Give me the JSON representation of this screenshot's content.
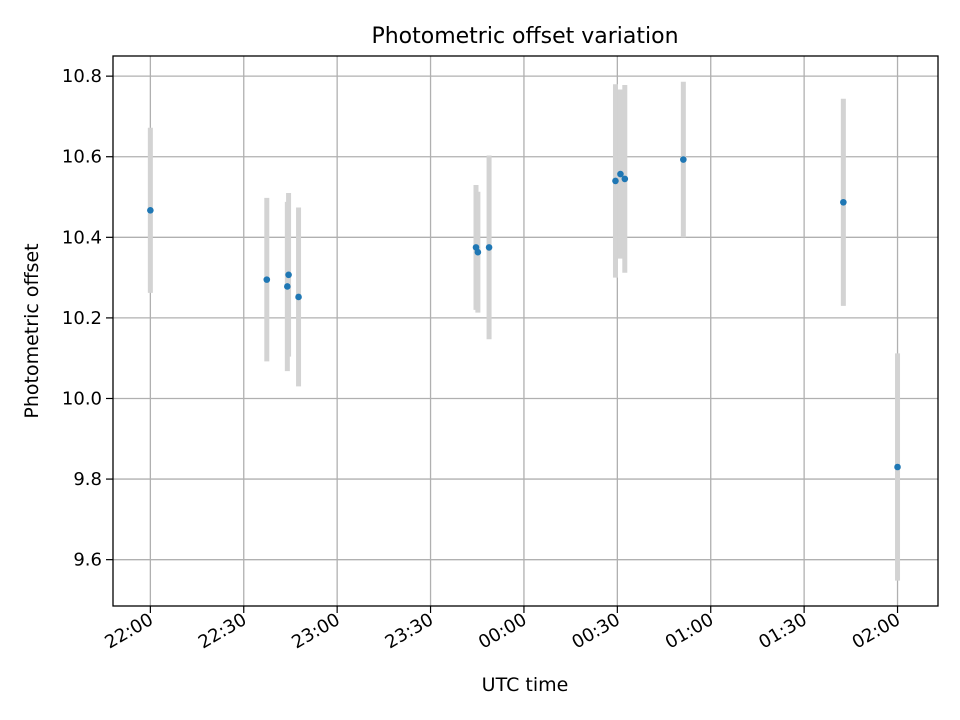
{
  "chart_data": {
    "type": "scatter",
    "title": "Photometric offset variation",
    "xlabel": "UTC time",
    "ylabel": "Photometric offset",
    "xlim_minutes": [
      -6,
      126.5
    ],
    "ylim": [
      9.485,
      10.85
    ],
    "x_ticks": [
      {
        "minutes": 0,
        "label": "22:00"
      },
      {
        "minutes": 15,
        "label": "22:30"
      },
      {
        "minutes": 30,
        "label": "23:00"
      },
      {
        "minutes": 45,
        "label": "23:30"
      },
      {
        "minutes": 60,
        "label": "00:00"
      },
      {
        "minutes": 75,
        "label": "00:30"
      },
      {
        "minutes": 90,
        "label": "01:00"
      },
      {
        "minutes": 105,
        "label": "01:30"
      },
      {
        "minutes": 120,
        "label": "02:00"
      }
    ],
    "y_ticks": [
      {
        "value": 9.6,
        "label": "9.6"
      },
      {
        "value": 9.8,
        "label": "9.8"
      },
      {
        "value": 10.0,
        "label": "10.0"
      },
      {
        "value": 10.2,
        "label": "10.2"
      },
      {
        "value": 10.4,
        "label": "10.4"
      },
      {
        "value": 10.6,
        "label": "10.6"
      },
      {
        "value": 10.8,
        "label": "10.8"
      }
    ],
    "grid": true,
    "series": [
      {
        "name": "offset",
        "color": "#1f77b4",
        "errorbar_color": "#d3d3d3",
        "points": [
          {
            "x": 0.0,
            "y": 10.467,
            "err": 0.205
          },
          {
            "x": 18.7,
            "y": 10.295,
            "err": 0.203
          },
          {
            "x": 22.0,
            "y": 10.278,
            "err": 0.21
          },
          {
            "x": 22.2,
            "y": 10.307,
            "err": 0.203
          },
          {
            "x": 23.8,
            "y": 10.252,
            "err": 0.222
          },
          {
            "x": 52.3,
            "y": 10.375,
            "err": 0.155
          },
          {
            "x": 52.6,
            "y": 10.363,
            "err": 0.15
          },
          {
            "x": 54.4,
            "y": 10.375,
            "err": 0.228
          },
          {
            "x": 74.7,
            "y": 10.54,
            "err": 0.24
          },
          {
            "x": 75.5,
            "y": 10.557,
            "err": 0.21
          },
          {
            "x": 76.2,
            "y": 10.545,
            "err": 0.233
          },
          {
            "x": 85.6,
            "y": 10.593,
            "err": 0.193
          },
          {
            "x": 111.3,
            "y": 10.487,
            "err": 0.257
          },
          {
            "x": 120.0,
            "y": 9.83,
            "err": 0.282
          }
        ]
      }
    ]
  }
}
